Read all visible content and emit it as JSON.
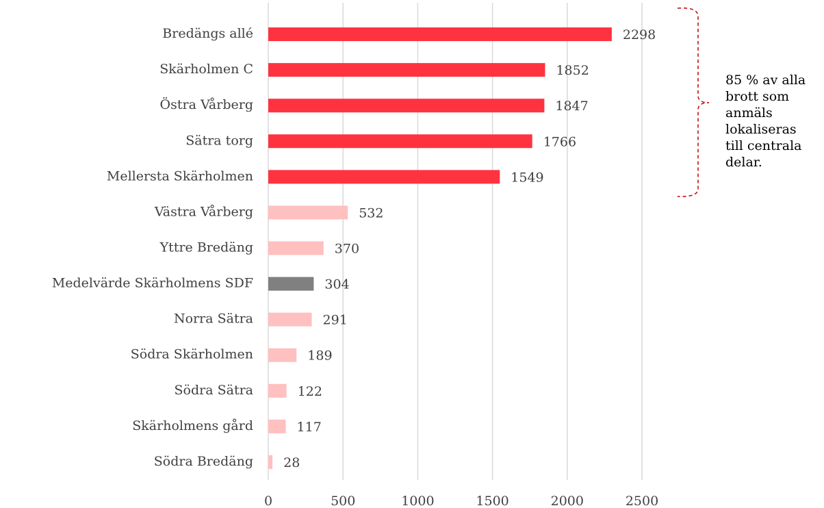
{
  "chart_data": {
    "type": "barh",
    "categories": [
      "Bredängs allé",
      "Skärholmen C",
      "Östra Vårberg",
      "Sätra torg",
      "Mellersta Skärholmen",
      "Västra Vårberg",
      "Yttre Bredäng",
      "Medelvärde Skärholmens SDF",
      "Norra Sätra",
      "Södra Skärholmen",
      "Södra Sätra",
      "Skärholmens gård",
      "Södra Bredäng"
    ],
    "values": [
      2298,
      1852,
      1847,
      1766,
      1549,
      532,
      370,
      304,
      291,
      189,
      122,
      117,
      28
    ],
    "colors": [
      "#ff3340",
      "#ff3340",
      "#ff3340",
      "#ff3340",
      "#ff3340",
      "#ffc0c0",
      "#ffc0c0",
      "#808080",
      "#ffc0c0",
      "#ffc0c0",
      "#ffc0c0",
      "#ffc0c0",
      "#ffc0c0"
    ],
    "xlim": [
      0,
      2500
    ],
    "xticks": [
      0,
      500,
      1000,
      1500,
      2000,
      2500
    ],
    "grid": true,
    "annotation": [
      "85 % av alla",
      "brott som",
      "anmäls",
      "lokaliseras",
      "till centrala",
      "delar."
    ]
  }
}
